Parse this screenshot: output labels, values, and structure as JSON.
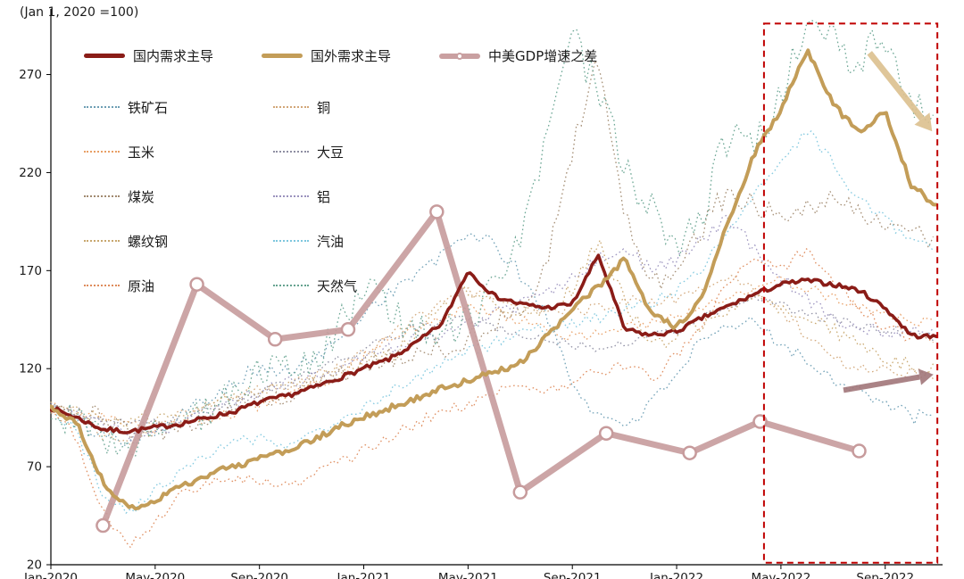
{
  "chart_data": {
    "type": "line",
    "unit_note": "(Jan 1, 2020 =100)",
    "x_tick_labels": [
      "Jan-2020",
      "May-2020",
      "Sep-2020",
      "Jan-2021",
      "May-2021",
      "Sep-2021",
      "Jan-2022",
      "May-2022",
      "Sep-2022"
    ],
    "x_tick_months": [
      0,
      4,
      8,
      12,
      16,
      20,
      24,
      28,
      32
    ],
    "x_domain_months": [
      0,
      34.2
    ],
    "y_ticks": [
      20,
      70,
      120,
      170,
      220,
      270
    ],
    "y_domain": [
      20,
      298
    ],
    "series": [
      {
        "key": "iron-ore",
        "name": "铁矿石",
        "color": "#6d9eb4",
        "style": "dotted",
        "jitter": 4,
        "values": [
          100,
          93,
          86,
          84,
          89,
          96,
          105,
          114,
          120,
          118,
          124,
          134,
          149,
          159,
          168,
          177,
          190,
          183,
          168,
          148,
          112,
          96,
          92,
          101,
          119,
          133,
          140,
          144,
          134,
          124,
          115,
          110,
          101,
          96,
          93
        ]
      },
      {
        "key": "copper",
        "name": "铜",
        "color": "#d2a678",
        "style": "dotted",
        "jitter": 3,
        "values": [
          100,
          97,
          86,
          83,
          89,
          96,
          101,
          106,
          109,
          111,
          116,
          122,
          128,
          136,
          146,
          155,
          160,
          155,
          152,
          150,
          149,
          151,
          156,
          153,
          156,
          161,
          166,
          161,
          150,
          136,
          126,
          119,
          121,
          118,
          116
        ]
      },
      {
        "key": "corn",
        "name": "玉米",
        "color": "#e89f66",
        "style": "dotted",
        "jitter": 3,
        "values": [
          100,
          98,
          95,
          92,
          90,
          92,
          95,
          98,
          101,
          106,
          111,
          116,
          126,
          136,
          141,
          146,
          151,
          148,
          145,
          140,
          136,
          138,
          141,
          143,
          146,
          151,
          156,
          161,
          166,
          161,
          156,
          151,
          148,
          145,
          143
        ]
      },
      {
        "key": "soybean",
        "name": "大豆",
        "color": "#8f8fa3",
        "style": "dotted",
        "jitter": 2.5,
        "values": [
          100,
          98,
          95,
          93,
          92,
          95,
          98,
          102,
          108,
          112,
          118,
          125,
          130,
          136,
          141,
          143,
          146,
          141,
          138,
          135,
          132,
          130,
          133,
          136,
          139,
          146,
          151,
          156,
          152,
          148,
          145,
          142,
          140,
          138,
          136
        ]
      },
      {
        "key": "coal",
        "name": "煤炭",
        "color": "#a18a70",
        "style": "dotted",
        "jitter": 6,
        "values": [
          100,
          98,
          94,
          90,
          88,
          90,
          95,
          100,
          104,
          108,
          112,
          118,
          122,
          125,
          128,
          131,
          136,
          141,
          152,
          172,
          232,
          282,
          198,
          162,
          172,
          192,
          212,
          202,
          196,
          201,
          206,
          201,
          196,
          191,
          186
        ]
      },
      {
        "key": "aluminum",
        "name": "铝",
        "color": "#9b92be",
        "style": "dotted",
        "jitter": 3.5,
        "values": [
          100,
          97,
          90,
          86,
          88,
          92,
          98,
          103,
          108,
          112,
          115,
          120,
          125,
          130,
          135,
          138,
          142,
          148,
          152,
          158,
          166,
          176,
          181,
          171,
          176,
          186,
          196,
          181,
          166,
          156,
          146,
          141,
          138,
          141,
          139
        ]
      },
      {
        "key": "rebar",
        "name": "螺纹钢",
        "color": "#c8a76e",
        "style": "dotted",
        "jitter": 4,
        "values": [
          100,
          97,
          94,
          93,
          96,
          99,
          102,
          105,
          108,
          110,
          113,
          118,
          122,
          127,
          136,
          149,
          161,
          151,
          146,
          149,
          161,
          186,
          156,
          131,
          136,
          143,
          151,
          156,
          152,
          148,
          140,
          132,
          126,
          121,
          119
        ]
      },
      {
        "key": "gasoline",
        "name": "汽油",
        "color": "#7ec7de",
        "style": "dotted",
        "jitter": 3,
        "values": [
          100,
          88,
          56,
          46,
          58,
          68,
          76,
          82,
          85,
          82,
          86,
          92,
          100,
          108,
          115,
          122,
          128,
          133,
          138,
          140,
          143,
          146,
          150,
          153,
          160,
          172,
          190,
          210,
          226,
          241,
          226,
          206,
          196,
          186,
          179
        ]
      },
      {
        "key": "crude-oil",
        "name": "原油",
        "color": "#de8b5c",
        "style": "dotted",
        "jitter": 3,
        "values": [
          100,
          85,
          46,
          31,
          41,
          55,
          62,
          65,
          62,
          60,
          65,
          72,
          78,
          85,
          92,
          98,
          102,
          108,
          112,
          110,
          113,
          118,
          122,
          115,
          126,
          141,
          166,
          176,
          171,
          181,
          166,
          151,
          141,
          136,
          131
        ]
      },
      {
        "key": "natural-gas",
        "name": "天然气",
        "color": "#66a390",
        "style": "dotted",
        "jitter": 10,
        "values": [
          100,
          95,
          86,
          81,
          85,
          90,
          96,
          110,
          116,
          121,
          126,
          141,
          161,
          151,
          141,
          136,
          146,
          161,
          191,
          232,
          291,
          261,
          221,
          201,
          181,
          201,
          241,
          231,
          261,
          291,
          286,
          276,
          291,
          256,
          241
        ]
      },
      {
        "key": "domestic-demand",
        "name": "国内需求主导",
        "color": "#8a1c17",
        "style": "thick",
        "jitter": 1.2,
        "values": [
          100,
          95,
          89,
          88,
          90,
          92,
          95,
          98,
          103,
          106,
          110,
          115,
          120,
          125,
          133,
          143,
          170,
          157,
          153,
          151,
          153,
          178,
          140,
          137,
          139,
          146,
          152,
          158,
          163,
          165,
          163,
          160,
          151,
          137,
          136
        ]
      },
      {
        "key": "foreign-demand",
        "name": "国外需求主导",
        "color": "#c39d58",
        "style": "thick",
        "jitter": 1.6,
        "values": [
          100,
          92,
          62,
          48,
          53,
          60,
          66,
          70,
          74,
          78,
          83,
          90,
          95,
          100,
          105,
          110,
          114,
          118,
          123,
          136,
          150,
          162,
          176,
          148,
          141,
          156,
          196,
          230,
          252,
          283,
          255,
          240,
          251,
          214,
          202
        ]
      }
    ],
    "gdp_series": {
      "key": "cn-us-gdp-gap",
      "name": "中美GDP增速之差",
      "color": "#c79b9c",
      "marker_fill": "#ffffff",
      "months": [
        2,
        5.6,
        8.6,
        11.4,
        14.8,
        18,
        21.3,
        24.5,
        27.2,
        31
      ],
      "values": [
        40,
        163,
        135,
        140,
        200,
        57,
        87,
        77,
        93,
        78
      ]
    },
    "annotations": {
      "highlight_box": {
        "x_months": [
          27.35,
          34.0
        ],
        "y_values": [
          21,
          296
        ],
        "color": "#c00000"
      },
      "arrow_down": {
        "from_month": 31.4,
        "from_value": 281,
        "to_month": 33.8,
        "to_value": 241,
        "color": "#dcc08f",
        "width": 7
      },
      "arrow_right": {
        "from_month": 30.4,
        "from_value": 109,
        "to_month": 33.85,
        "to_value": 117,
        "color": "#a1767a",
        "width": 6
      }
    }
  },
  "legend": {
    "thick_items": [
      {
        "key": "domestic-demand",
        "label": "国内需求主导",
        "color": "#8a1c17",
        "swatch": "line"
      },
      {
        "key": "foreign-demand",
        "label": "国外需求主导",
        "color": "#c39d58",
        "swatch": "line"
      },
      {
        "key": "cn-us-gdp-gap",
        "label": "中美GDP增速之差",
        "color": "#c79b9c",
        "swatch": "line-marker"
      }
    ],
    "dotted_items": [
      {
        "key": "iron-ore",
        "label": "铁矿石",
        "color": "#6d9eb4"
      },
      {
        "key": "copper",
        "label": "铜",
        "color": "#d2a678"
      },
      {
        "key": "corn",
        "label": "玉米",
        "color": "#e89f66"
      },
      {
        "key": "soybean",
        "label": "大豆",
        "color": "#8f8fa3"
      },
      {
        "key": "coal",
        "label": "煤炭",
        "color": "#a18a70"
      },
      {
        "key": "aluminum",
        "label": "铝",
        "color": "#9b92be"
      },
      {
        "key": "rebar",
        "label": "螺纹钢",
        "color": "#c8a76e"
      },
      {
        "key": "gasoline",
        "label": "汽油",
        "color": "#7ec7de"
      },
      {
        "key": "crude-oil",
        "label": "原油",
        "color": "#de8b5c"
      },
      {
        "key": "natural-gas",
        "label": "天然气",
        "color": "#66a390"
      }
    ]
  }
}
